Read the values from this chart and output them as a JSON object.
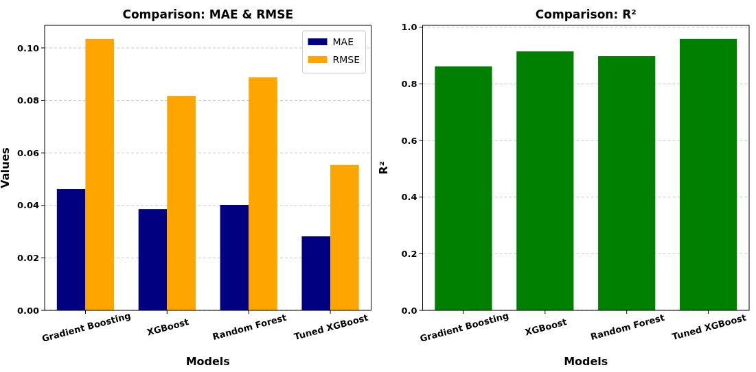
{
  "chart_data": [
    {
      "type": "bar",
      "title": "Comparison: MAE & RMSE",
      "xlabel": "Models",
      "ylabel": "Values",
      "categories": [
        "Gradient Boosting",
        "XGBoost",
        "Random Forest",
        "Tuned XGBoost"
      ],
      "series": [
        {
          "name": "MAE",
          "color": "#000080",
          "values": [
            0.0462,
            0.0386,
            0.0402,
            0.0282
          ]
        },
        {
          "name": "RMSE",
          "color": "#ffa500",
          "values": [
            0.1034,
            0.0817,
            0.0888,
            0.0554
          ]
        }
      ],
      "ylim": [
        0,
        0.1086
      ],
      "yticks": [
        {
          "value": 0,
          "label": "0.00"
        },
        {
          "value": 0.02,
          "label": "0.02"
        },
        {
          "value": 0.04,
          "label": "0.04"
        },
        {
          "value": 0.06,
          "label": "0.06"
        },
        {
          "value": 0.08,
          "label": "0.08"
        },
        {
          "value": 0.1,
          "label": "0.10"
        }
      ],
      "grid": "y",
      "legend": "top right"
    },
    {
      "type": "bar",
      "title": "Comparison: R²",
      "xlabel": "Models",
      "ylabel": "R²",
      "categories": [
        "Gradient Boosting",
        "XGBoost",
        "Random Forest",
        "Tuned XGBoost"
      ],
      "series": [
        {
          "color": "#008000",
          "values": [
            0.862,
            0.915,
            0.898,
            0.959
          ]
        }
      ],
      "ylim": [
        0,
        1.007
      ],
      "yticks": [
        {
          "value": 0,
          "label": "0.0"
        },
        {
          "value": 0.2,
          "label": "0.2"
        },
        {
          "value": 0.4,
          "label": "0.4"
        },
        {
          "value": 0.6,
          "label": "0.6"
        },
        {
          "value": 0.8,
          "label": "0.8"
        },
        {
          "value": 1,
          "label": "1.0"
        }
      ],
      "grid": "y"
    }
  ]
}
